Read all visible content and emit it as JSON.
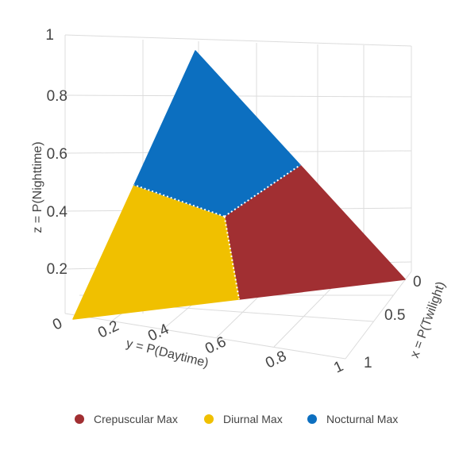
{
  "chart_data": {
    "type": "ternary-3d-surface",
    "axes": {
      "x": {
        "label": "x = P(Twilight)",
        "ticks": [
          "0",
          "0.5",
          "1"
        ],
        "range": [
          0,
          1
        ]
      },
      "y": {
        "label": "y = P(Daytime)",
        "ticks": [
          "0",
          "0.2",
          "0.4",
          "0.6",
          "0.8",
          "1"
        ],
        "range": [
          0,
          1
        ]
      },
      "z": {
        "label": "z = P(Nighttime)",
        "ticks": [
          "0.2",
          "0.4",
          "0.6",
          "0.8",
          "1"
        ],
        "range": [
          0,
          1
        ]
      }
    },
    "grid": true,
    "legend_position": "bottom",
    "series": [
      {
        "name": "Crepuscular Max",
        "color": "#a12f32",
        "region": [
          [
            0.5,
            0.5,
            0
          ],
          [
            1,
            0,
            0
          ],
          [
            0.5,
            0,
            0.5
          ],
          [
            0.333,
            0.333,
            0.333
          ]
        ]
      },
      {
        "name": "Diurnal Max",
        "color": "#f0c000",
        "region": [
          [
            0,
            1,
            0
          ],
          [
            0.5,
            0.5,
            0
          ],
          [
            0.333,
            0.333,
            0.333
          ],
          [
            0,
            0.5,
            0.5
          ]
        ]
      },
      {
        "name": "Nocturnal Max",
        "color": "#0c6fc0",
        "region": [
          [
            0,
            0,
            1
          ],
          [
            0.5,
            0,
            0.5
          ],
          [
            0.333,
            0.333,
            0.333
          ],
          [
            0,
            0.5,
            0.5
          ]
        ]
      }
    ]
  }
}
